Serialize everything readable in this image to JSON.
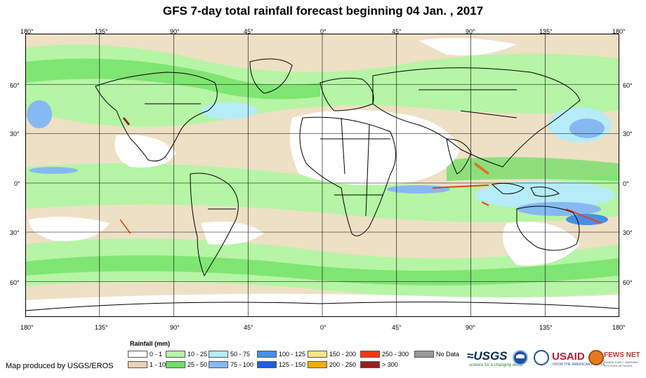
{
  "title": "GFS 7-day total rainfall forecast beginning 04 Jan. , 2017",
  "longitude_labels": [
    "180°",
    "135°",
    "90°",
    "45°",
    "0°",
    "45°",
    "90°",
    "135°",
    "180°"
  ],
  "latitude_labels": [
    "60°",
    "30°",
    "0°",
    "30°",
    "60°"
  ],
  "legend": {
    "title": "Rainfall (mm)",
    "classes": [
      {
        "label": "0 - 1",
        "color": "#ffffff"
      },
      {
        "label": "1 - 10",
        "color": "#e8d4b4"
      },
      {
        "label": "10 - 25",
        "color": "#b5f5a5"
      },
      {
        "label": "25 - 50",
        "color": "#6ddf63"
      },
      {
        "label": "50 - 75",
        "color": "#b6ecf8"
      },
      {
        "label": "75 - 100",
        "color": "#86b9f2"
      },
      {
        "label": "100 - 125",
        "color": "#4a8fe6"
      },
      {
        "label": "125 - 150",
        "color": "#1f5fd6"
      },
      {
        "label": "150 - 200",
        "color": "#fde587"
      },
      {
        "label": "200 - 250",
        "color": "#fda90f"
      },
      {
        "label": "250 - 300",
        "color": "#f33a11"
      },
      {
        "label": "> 300",
        "color": "#9a1d1d"
      },
      {
        "label": "No Data",
        "color": "#999999"
      }
    ]
  },
  "credit": "Map produced by USGS/EROS",
  "logos": {
    "usgs": "≈USGS",
    "usgs_tagline": "science for a changing world",
    "usaid": "USAID",
    "usaid_tagline": "FROM THE AMERICAN PEOPLE",
    "fews": "FEWS NET",
    "fews_tagline": "FAMINE EARLY WARNING SYSTEMS NETWORK"
  }
}
